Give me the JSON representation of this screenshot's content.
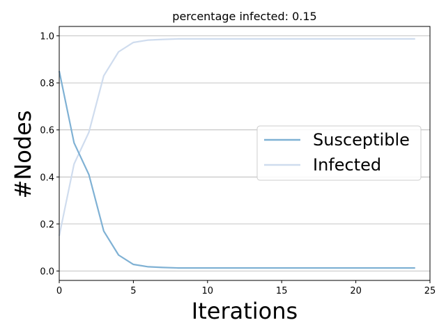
{
  "chart_data": {
    "type": "line",
    "title": "percentage infected: 0.15",
    "xlabel": "Iterations",
    "ylabel": "#Nodes",
    "xlim": [
      0,
      25
    ],
    "ylim": [
      -0.04,
      1.04
    ],
    "xticks": [
      0,
      5,
      10,
      15,
      20,
      25
    ],
    "yticks": [
      0.0,
      0.2,
      0.4,
      0.6,
      0.8,
      1.0
    ],
    "xtick_labels": [
      "0",
      "5",
      "10",
      "15",
      "20",
      "25"
    ],
    "ytick_labels": [
      "0.0",
      "0.2",
      "0.4",
      "0.6",
      "0.8",
      "1.0"
    ],
    "grid": "horizontal",
    "legend_position": "center-right",
    "x": [
      0,
      1,
      2,
      3,
      4,
      5,
      6,
      7,
      8,
      9,
      10,
      11,
      12,
      13,
      14,
      15,
      16,
      17,
      18,
      19,
      20,
      21,
      22,
      23,
      24
    ],
    "series": [
      {
        "name": "Susceptible",
        "color": "#7fb1d4",
        "values": [
          0.85,
          0.545,
          0.41,
          0.17,
          0.068,
          0.028,
          0.018,
          0.015,
          0.013,
          0.013,
          0.013,
          0.013,
          0.013,
          0.013,
          0.013,
          0.013,
          0.013,
          0.013,
          0.013,
          0.013,
          0.013,
          0.013,
          0.013,
          0.013,
          0.013
        ]
      },
      {
        "name": "Infected",
        "color": "#cfdcee",
        "values": [
          0.15,
          0.455,
          0.59,
          0.83,
          0.932,
          0.972,
          0.982,
          0.985,
          0.987,
          0.987,
          0.987,
          0.987,
          0.987,
          0.987,
          0.987,
          0.987,
          0.987,
          0.987,
          0.987,
          0.987,
          0.987,
          0.987,
          0.987,
          0.987,
          0.987
        ]
      }
    ]
  }
}
